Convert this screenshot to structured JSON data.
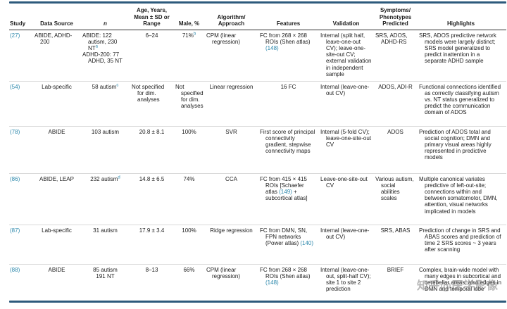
{
  "watermark": {
    "text": "知乎@医学影像"
  },
  "colors": {
    "link_teal": "#2b87ab",
    "heavy_rule_navy": "#2d5a7c",
    "header_rule": "#2e2e2e",
    "row_rule_gray": "#dadada"
  },
  "table": {
    "column_keys": [
      "study",
      "data_source",
      "n",
      "age",
      "male",
      "algorithm",
      "features",
      "validation",
      "symptoms",
      "highlights"
    ],
    "headers": [
      {
        "label": "Study"
      },
      {
        "label": "Data Source"
      },
      {
        "label": "n",
        "italic": true
      },
      {
        "label": "Age, Years,\nMean ± SD or\nRange"
      },
      {
        "label": "Male, %"
      },
      {
        "label": "Algorithm/\nApproach"
      },
      {
        "label": "Features"
      },
      {
        "label": "Validation"
      },
      {
        "label": "Symptoms/\nPhenotypes\nPredicted"
      },
      {
        "label": "Highlights"
      }
    ],
    "rows": [
      {
        "study": [
          [
            {
              "t": "(27)",
              "link": true
            }
          ]
        ],
        "data_source": [
          [
            "ABIDE, ADHD-200"
          ]
        ],
        "n": [
          [
            "ABIDE: 122 autism, 230 NT",
            {
              "t": "a",
              "sup": true,
              "link": true
            }
          ],
          [
            "ADHD-200: 77 ADHD, 35 NT"
          ]
        ],
        "age": [
          [
            "6–24"
          ]
        ],
        "male": [
          [
            "71%",
            {
              "t": "b",
              "sup": true,
              "link": true
            }
          ]
        ],
        "algorithm": [
          [
            "CPM (linear regression)"
          ]
        ],
        "features": [
          [
            "FC from 268 × 268 ROIs (Shen atlas) ",
            {
              "t": "(148)",
              "link": true
            }
          ]
        ],
        "validation": [
          [
            "Internal (split half, leave-one-out CV); leave-one-site-out CV; external validation in independent sample"
          ]
        ],
        "symptoms": [
          [
            "SRS, ADOS, ADHD-RS"
          ]
        ],
        "highlights": [
          [
            "SRS, ADOS predictive network models were largely distinct; SRS model generalized to predict inattention in a separate ADHD sample"
          ]
        ]
      },
      {
        "study": [
          [
            {
              "t": "(54)",
              "link": true
            }
          ]
        ],
        "data_source": [
          [
            "Lab-specific"
          ]
        ],
        "n": [
          [
            "58 autism",
            {
              "t": "c",
              "sup": true,
              "link": true
            }
          ]
        ],
        "age": [
          [
            "Not specified for dim. analyses"
          ]
        ],
        "male": [
          [
            "Not specified for dim. analyses"
          ]
        ],
        "algorithm": [
          [
            "Linear regression"
          ]
        ],
        "features": [
          [
            "16 FC"
          ]
        ],
        "validation": [
          [
            "Internal (leave-one-out CV)"
          ]
        ],
        "symptoms": [
          [
            "ADOS, ADI-R"
          ]
        ],
        "highlights": [
          [
            "Functional connections identified as correctly classifying autism vs. NT status generalized to predict the communication domain of ADOS"
          ]
        ]
      },
      {
        "study": [
          [
            {
              "t": "(78)",
              "link": true
            }
          ]
        ],
        "data_source": [
          [
            "ABIDE"
          ]
        ],
        "n": [
          [
            "103 autism"
          ]
        ],
        "age": [
          [
            "20.8 ± 8.1"
          ]
        ],
        "male": [
          [
            "100%"
          ]
        ],
        "algorithm": [
          [
            "SVR"
          ]
        ],
        "features": [
          [
            "First score of principal connectivity gradient, stepwise connectivity maps"
          ]
        ],
        "validation": [
          [
            "Internal (5-fold CV); leave-one-site-out CV"
          ]
        ],
        "symptoms": [
          [
            "ADOS"
          ]
        ],
        "highlights": [
          [
            "Prediction of ADOS total and social cognition; DMN and primary visual areas highly represented in predictive models"
          ]
        ]
      },
      {
        "study": [
          [
            {
              "t": "(86)",
              "link": true
            }
          ]
        ],
        "data_source": [
          [
            "ABIDE, LEAP"
          ]
        ],
        "n": [
          [
            "232 autism",
            {
              "t": "d",
              "sup": true,
              "link": true
            }
          ]
        ],
        "age": [
          [
            "14.8 ± 6.5"
          ]
        ],
        "male": [
          [
            "74%"
          ]
        ],
        "algorithm": [
          [
            "CCA"
          ]
        ],
        "features": [
          [
            "FC from 415 × 415 ROIs [Schaefer atlas ",
            {
              "t": "(149)",
              "link": true
            },
            " + subcortical atlas]"
          ]
        ],
        "validation": [
          [
            "Leave-one-site-out CV"
          ]
        ],
        "symptoms": [
          [
            "Various autism, social abilities scales"
          ]
        ],
        "highlights": [
          [
            "Multiple canonical variates predictive of left-out-site; connections within and between somatomotor, DMN, attention, visual networks implicated in models"
          ]
        ]
      },
      {
        "study": [
          [
            {
              "t": "(87)",
              "link": true
            }
          ]
        ],
        "data_source": [
          [
            "Lab-specific"
          ]
        ],
        "n": [
          [
            "31 autism"
          ]
        ],
        "age": [
          [
            "17.9 ± 3.4"
          ]
        ],
        "male": [
          [
            "100%"
          ]
        ],
        "algorithm": [
          [
            "Ridge regression"
          ]
        ],
        "features": [
          [
            "FC from DMN, SN, FPN networks (Power atlas) ",
            {
              "t": "(140)",
              "link": true
            }
          ]
        ],
        "validation": [
          [
            "Internal (leave-one-out CV)"
          ]
        ],
        "symptoms": [
          [
            "SRS, ABAS"
          ]
        ],
        "highlights": [
          [
            "Prediction of change in SRS and ABAS scores and prediction of time 2 SRS scores ~ 3 years after scanning"
          ]
        ]
      },
      {
        "study": [
          [
            {
              "t": "(88)",
              "link": true
            }
          ]
        ],
        "data_source": [
          [
            "ABIDE"
          ]
        ],
        "n": [
          [
            "85 autism"
          ],
          [
            "191 NT"
          ]
        ],
        "age": [
          [
            "8–13"
          ]
        ],
        "male": [
          [
            "66%"
          ]
        ],
        "algorithm": [
          [
            "CPM (linear regression)"
          ]
        ],
        "features": [
          [
            "FC from 268 × 268 ROIs (Shen atlas) ",
            {
              "t": "(148)",
              "link": true
            }
          ]
        ],
        "validation": [
          [
            "Internal (leave-one-out, split-half CV); site 1 to site 2 prediction"
          ]
        ],
        "symptoms": [
          [
            "BRIEF"
          ]
        ],
        "highlights": [
          [
            "Complex, brain-wide model with many edges in subcortical and cerebellar areas; also edges in DMN and temporal lobe"
          ]
        ]
      }
    ]
  }
}
